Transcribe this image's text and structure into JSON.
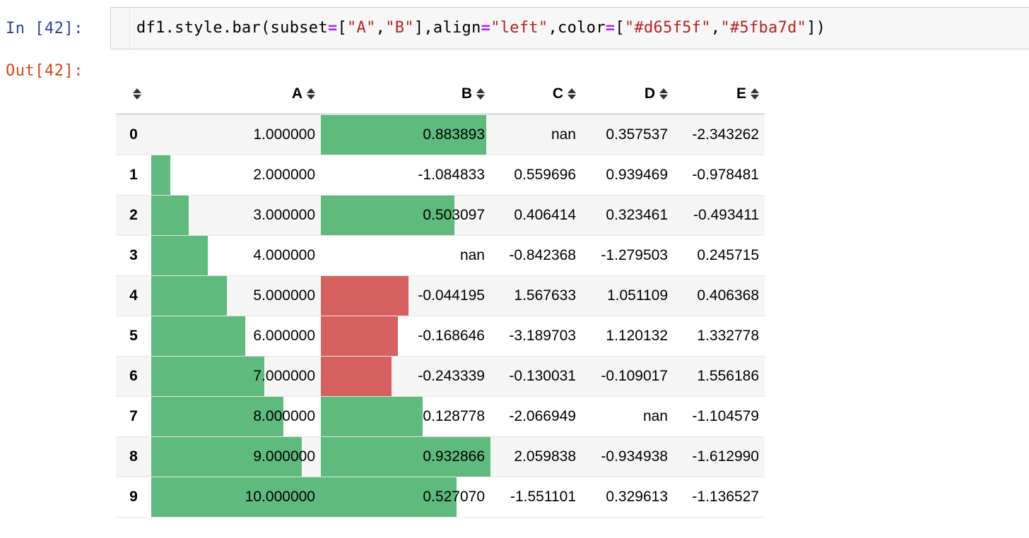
{
  "input": {
    "prompt": "In [42]:",
    "code_parts": [
      {
        "t": "plain",
        "v": "df1.style.bar(subset"
      },
      {
        "t": "eq",
        "v": "="
      },
      {
        "t": "plain",
        "v": "["
      },
      {
        "t": "str",
        "v": "\"A\""
      },
      {
        "t": "plain",
        "v": ","
      },
      {
        "t": "str",
        "v": "\"B\""
      },
      {
        "t": "plain",
        "v": "],align"
      },
      {
        "t": "eq",
        "v": "="
      },
      {
        "t": "str",
        "v": "\"left\""
      },
      {
        "t": "plain",
        "v": ",color"
      },
      {
        "t": "eq",
        "v": "="
      },
      {
        "t": "plain",
        "v": "["
      },
      {
        "t": "str",
        "v": "\"#d65f5f\""
      },
      {
        "t": "plain",
        "v": ","
      },
      {
        "t": "str",
        "v": "\"#5fba7d\""
      },
      {
        "t": "plain",
        "v": "])"
      }
    ]
  },
  "output": {
    "prompt": "Out[42]:"
  },
  "colors": {
    "negative": "#d65f5f",
    "positive": "#5fba7d",
    "in_prompt": "#303f9f",
    "out_prompt": "#d84315"
  },
  "table": {
    "columns": [
      "A",
      "B",
      "C",
      "D",
      "E"
    ],
    "sort_icon": "sort-updown-icon",
    "bar_columns": {
      "A": {
        "min": 1.0,
        "max": 10.0
      },
      "B": {
        "min": -1.084833,
        "max": 0.932866
      }
    },
    "rows": [
      {
        "index": "0",
        "A": "1.000000",
        "B": "0.883893",
        "C": "nan",
        "D": "0.357537",
        "E": "-2.343262"
      },
      {
        "index": "1",
        "A": "2.000000",
        "B": "-1.084833",
        "C": "0.559696",
        "D": "0.939469",
        "E": "-0.978481"
      },
      {
        "index": "2",
        "A": "3.000000",
        "B": "0.503097",
        "C": "0.406414",
        "D": "0.323461",
        "E": "-0.493411"
      },
      {
        "index": "3",
        "A": "4.000000",
        "B": "nan",
        "C": "-0.842368",
        "D": "-1.279503",
        "E": "0.245715"
      },
      {
        "index": "4",
        "A": "5.000000",
        "B": "-0.044195",
        "C": "1.567633",
        "D": "1.051109",
        "E": "0.406368"
      },
      {
        "index": "5",
        "A": "6.000000",
        "B": "-0.168646",
        "C": "-3.189703",
        "D": "1.120132",
        "E": "1.332778"
      },
      {
        "index": "6",
        "A": "7.000000",
        "B": "-0.243339",
        "C": "-0.130031",
        "D": "-0.109017",
        "E": "1.556186"
      },
      {
        "index": "7",
        "A": "8.000000",
        "B": "0.128778",
        "C": "-2.066949",
        "D": "nan",
        "E": "-1.104579"
      },
      {
        "index": "8",
        "A": "9.000000",
        "B": "0.932866",
        "C": "2.059838",
        "D": "-0.934938",
        "E": "-1.612990"
      },
      {
        "index": "9",
        "A": "10.000000",
        "B": "0.527070",
        "C": "-1.551101",
        "D": "0.329613",
        "E": "-1.136527"
      }
    ]
  }
}
